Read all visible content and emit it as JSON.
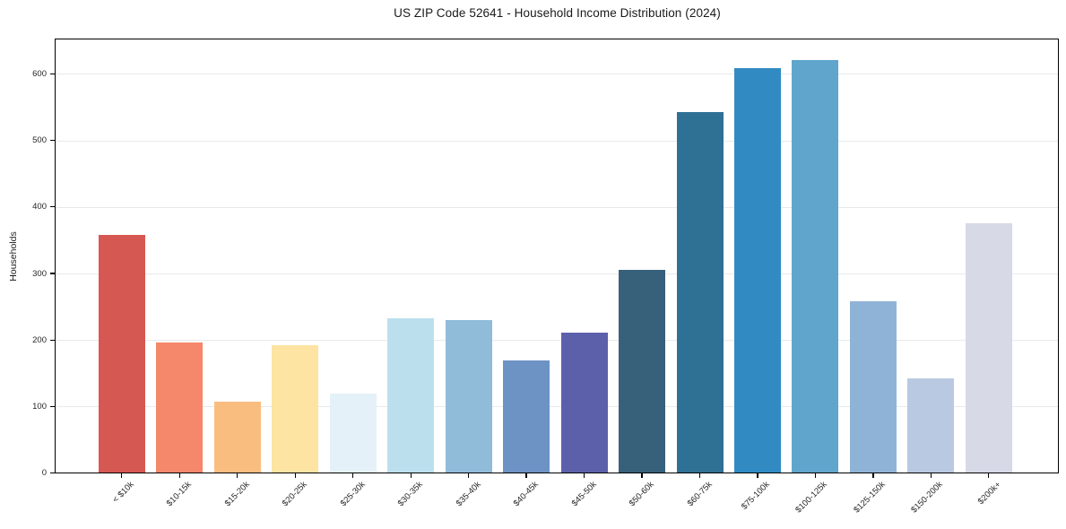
{
  "chart_data": {
    "type": "bar",
    "title": "US ZIP Code 52641 - Household Income Distribution (2024)",
    "xlabel": "",
    "ylabel": "Households",
    "categories": [
      "< $10k",
      "$10-15k",
      "$15-20k",
      "$20-25k",
      "$25-30k",
      "$30-35k",
      "$35-40k",
      "$40-45k",
      "$45-50k",
      "$50-60k",
      "$60-75k",
      "$75-100k",
      "$100-125k",
      "$125-150k",
      "$150-200k",
      "$200k+"
    ],
    "values": [
      358,
      196,
      107,
      192,
      119,
      232,
      230,
      169,
      211,
      306,
      543,
      609,
      620,
      258,
      143,
      376
    ],
    "bar_colors": [
      "#d65852",
      "#f5876a",
      "#fabd80",
      "#fde4a2",
      "#e4f1f8",
      "#bcdfee",
      "#90bcda",
      "#6d93c4",
      "#5c60ab",
      "#37617a",
      "#2f7095",
      "#318bc2",
      "#5fa5cc",
      "#8fb3d6",
      "#b9c9e2",
      "#d7d9e7"
    ],
    "ylim": [
      0,
      652
    ],
    "yticks": [
      0,
      100,
      200,
      300,
      400,
      500,
      600
    ],
    "grid": "horizontal",
    "grid_color": "#e8e9ec",
    "spine_color": "#000000",
    "background": "#ffffff",
    "legend": "none"
  }
}
